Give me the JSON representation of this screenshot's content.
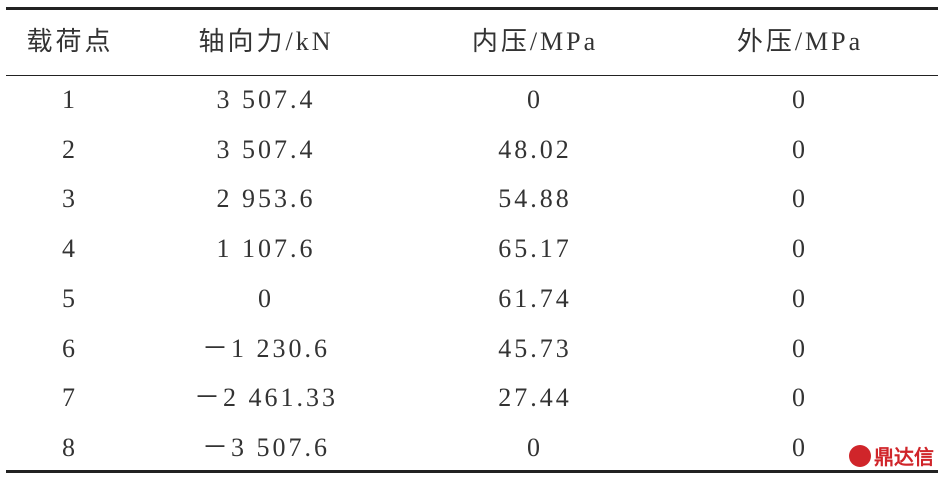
{
  "table": {
    "header": [
      "载荷点",
      "轴向力/kN",
      "内压/MPa",
      "外压/MPa"
    ],
    "rows": [
      [
        "1",
        "3 507.4",
        "0",
        "0"
      ],
      [
        "2",
        "3 507.4",
        "48.02",
        "0"
      ],
      [
        "3",
        "2 953.6",
        "54.88",
        "0"
      ],
      [
        "4",
        "1 107.6",
        "65.17",
        "0"
      ],
      [
        "5",
        "0",
        "61.74",
        "0"
      ],
      [
        "6",
        "－1 230.6",
        "45.73",
        "0"
      ],
      [
        "7",
        "－2 461.33",
        "27.44",
        "0"
      ],
      [
        "8",
        "－3 507.6",
        "0",
        "0"
      ]
    ]
  },
  "watermark": "鼎达信"
}
